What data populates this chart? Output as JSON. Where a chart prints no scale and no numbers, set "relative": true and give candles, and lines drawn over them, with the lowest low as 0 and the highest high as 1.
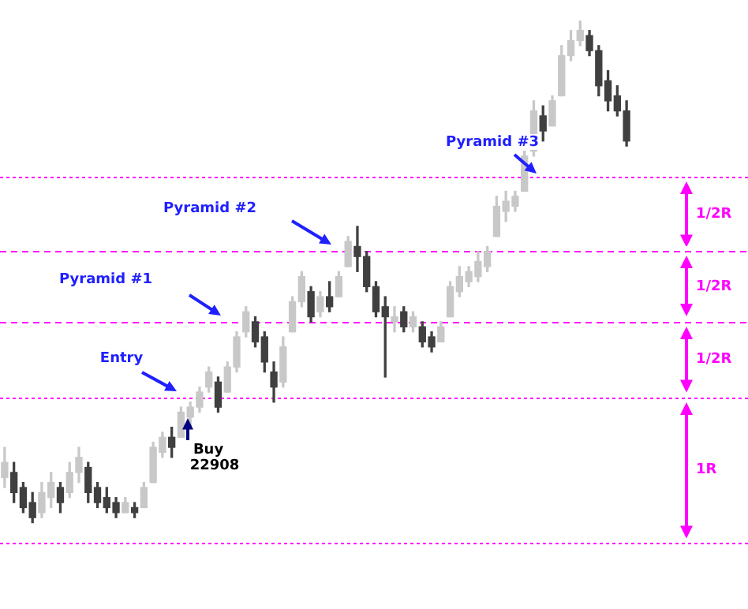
{
  "chart_data": {
    "type": "candlestick",
    "relative": true,
    "colors": [
      "#c8c8c8",
      "#404040",
      "#404040",
      "#404040",
      "#c8c8c8",
      "#c8c8c8",
      "#404040",
      "#c8c8c8",
      "#c8c8c8",
      "#404040",
      "#404040",
      "#404040",
      "#404040",
      "#c8c8c8",
      "#404040",
      "#c8c8c8",
      "#c8c8c8",
      "#c8c8c8",
      "#404040",
      "#c8c8c8",
      "#c8c8c8",
      "#c8c8c8",
      "#c8c8c8",
      "#404040",
      "#c8c8c8",
      "#c8c8c8",
      "#c8c8c8",
      "#404040",
      "#404040",
      "#404040",
      "#c8c8c8",
      "#c8c8c8",
      "#c8c8c8",
      "#404040",
      "#c8c8c8",
      "#404040",
      "#c8c8c8",
      "#c8c8c8",
      "#404040",
      "#404040",
      "#404040",
      "#404040",
      "#c8c8c8",
      "#404040",
      "#c8c8c8",
      "#404040",
      "#404040",
      "#c8c8c8",
      "#c8c8c8",
      "#c8c8c8",
      "#c8c8c8",
      "#c8c8c8",
      "#c8c8c8",
      "#c8c8c8",
      "#c8c8c8",
      "#c8c8c8",
      "#c8c8c8",
      "#c8c8c8",
      "#404040",
      "#c8c8c8",
      "#c8c8c8",
      "#c8c8c8",
      "#c8c8c8",
      "#404040",
      "#404040",
      "#404040",
      "#404040",
      "#404040"
    ],
    "categories": [
      null,
      null,
      null,
      null,
      null,
      null,
      null,
      null,
      null,
      null,
      null,
      null,
      null,
      null,
      null,
      null,
      null,
      null,
      null,
      null,
      null,
      null,
      null,
      null,
      null,
      null,
      null,
      null,
      null,
      null,
      null,
      null,
      null,
      null,
      null,
      null,
      null,
      null,
      null,
      null,
      null,
      null,
      null,
      null,
      null,
      null,
      null,
      null,
      null,
      null,
      null,
      null,
      null,
      null,
      null,
      null,
      null,
      null,
      null,
      null,
      null,
      null,
      null,
      null,
      null,
      null,
      null,
      null
    ],
    "ohlc": [
      [
        0.09,
        0.15,
        0.07,
        0.12
      ],
      [
        0.1,
        0.12,
        0.04,
        0.06
      ],
      [
        0.07,
        0.08,
        0.02,
        0.03
      ],
      [
        0.04,
        0.06,
        0,
        0.01
      ],
      [
        0.02,
        0.08,
        0.01,
        0.06
      ],
      [
        0.05,
        0.1,
        0.03,
        0.08
      ],
      [
        0.07,
        0.08,
        0.02,
        0.04
      ],
      [
        0.06,
        0.12,
        0.05,
        0.1
      ],
      [
        0.1,
        0.15,
        0.08,
        0.13
      ],
      [
        0.11,
        0.12,
        0.04,
        0.06
      ],
      [
        0.07,
        0.08,
        0.03,
        0.04
      ],
      [
        0.05,
        0.07,
        0.02,
        0.03
      ],
      [
        0.04,
        0.05,
        0.01,
        0.02
      ],
      [
        0.02,
        0.05,
        0.02,
        0.04
      ],
      [
        0.03,
        0.04,
        0.01,
        0.02
      ],
      [
        0.03,
        0.08,
        0.03,
        0.07
      ],
      [
        0.08,
        0.16,
        0.08,
        0.15
      ],
      [
        0.14,
        0.18,
        0.13,
        0.17
      ],
      [
        0.17,
        0.19,
        0.13,
        0.15
      ],
      [
        0.17,
        0.23,
        0.17,
        0.22
      ],
      [
        0.21,
        0.24,
        0.19,
        0.23
      ],
      [
        0.23,
        0.27,
        0.22,
        0.26
      ],
      [
        0.27,
        0.31,
        0.26,
        0.3
      ],
      [
        0.28,
        0.29,
        0.22,
        0.23
      ],
      [
        0.26,
        0.32,
        0.26,
        0.31
      ],
      [
        0.31,
        0.38,
        0.3,
        0.37
      ],
      [
        0.38,
        0.43,
        0.37,
        0.42
      ],
      [
        0.4,
        0.41,
        0.35,
        0.36
      ],
      [
        0.37,
        0.38,
        0.3,
        0.32
      ],
      [
        0.3,
        0.32,
        0.24,
        0.27
      ],
      [
        0.28,
        0.37,
        0.27,
        0.35
      ],
      [
        0.38,
        0.45,
        0.38,
        0.44
      ],
      [
        0.44,
        0.5,
        0.43,
        0.49
      ],
      [
        0.46,
        0.47,
        0.4,
        0.41
      ],
      [
        0.42,
        0.46,
        0.41,
        0.45
      ],
      [
        0.45,
        0.48,
        0.42,
        0.43
      ],
      [
        0.45,
        0.5,
        0.45,
        0.49
      ],
      [
        0.51,
        0.57,
        0.51,
        0.56
      ],
      [
        0.55,
        0.59,
        0.5,
        0.53
      ],
      [
        0.53,
        0.54,
        0.46,
        0.47
      ],
      [
        0.47,
        0.48,
        0.41,
        0.42
      ],
      [
        0.43,
        0.45,
        0.29,
        0.41
      ],
      [
        0.4,
        0.43,
        0.38,
        0.41
      ],
      [
        0.42,
        0.43,
        0.38,
        0.39
      ],
      [
        0.39,
        0.42,
        0.38,
        0.41
      ],
      [
        0.39,
        0.4,
        0.35,
        0.36
      ],
      [
        0.37,
        0.38,
        0.34,
        0.35
      ],
      [
        0.36,
        0.4,
        0.36,
        0.39
      ],
      [
        0.41,
        0.48,
        0.41,
        0.47
      ],
      [
        0.46,
        0.51,
        0.45,
        0.49
      ],
      [
        0.48,
        0.51,
        0.47,
        0.5
      ],
      [
        0.49,
        0.54,
        0.48,
        0.52
      ],
      [
        0.51,
        0.55,
        0.5,
        0.54
      ],
      [
        0.57,
        0.65,
        0.57,
        0.63
      ],
      [
        0.62,
        0.66,
        0.6,
        0.64
      ],
      [
        0.63,
        0.66,
        0.62,
        0.65
      ],
      [
        0.66,
        0.74,
        0.66,
        0.73
      ],
      [
        0.74,
        0.84,
        0.73,
        0.82
      ],
      [
        0.81,
        0.83,
        0.76,
        0.78
      ],
      [
        0.79,
        0.85,
        0.79,
        0.84
      ],
      [
        0.85,
        0.95,
        0.85,
        0.93
      ],
      [
        0.93,
        0.98,
        0.92,
        0.96
      ],
      [
        0.96,
        1,
        0.95,
        0.98
      ],
      [
        0.97,
        0.98,
        0.93,
        0.94
      ],
      [
        0.94,
        0.95,
        0.85,
        0.87
      ],
      [
        0.88,
        0.9,
        0.82,
        0.84
      ],
      [
        0.85,
        0.87,
        0.81,
        0.82
      ],
      [
        0.82,
        0.84,
        0.75,
        0.76
      ]
    ],
    "ref_lines": [
      {
        "axis": "y",
        "value": -0.04,
        "color": "#ff00ff",
        "line_style": "dotted"
      },
      {
        "axis": "y",
        "value": 0.25,
        "color": "#ff00ff",
        "line_style": "dotted"
      },
      {
        "axis": "y",
        "value": 0.4,
        "color": "#ff00ff",
        "line_style": "dashed"
      },
      {
        "axis": "y",
        "value": 0.54,
        "color": "#ff00ff",
        "line_style": "dashed"
      },
      {
        "axis": "y",
        "value": 0.69,
        "color": "#ff00ff",
        "line_style": "dotted"
      }
    ],
    "annotations": [
      "Entry",
      "Pyramid #1",
      "Pyramid #2",
      "Pyramid #3",
      "Buy 22908",
      "1R",
      "1/2R",
      "1/2R",
      "1/2R"
    ]
  }
}
